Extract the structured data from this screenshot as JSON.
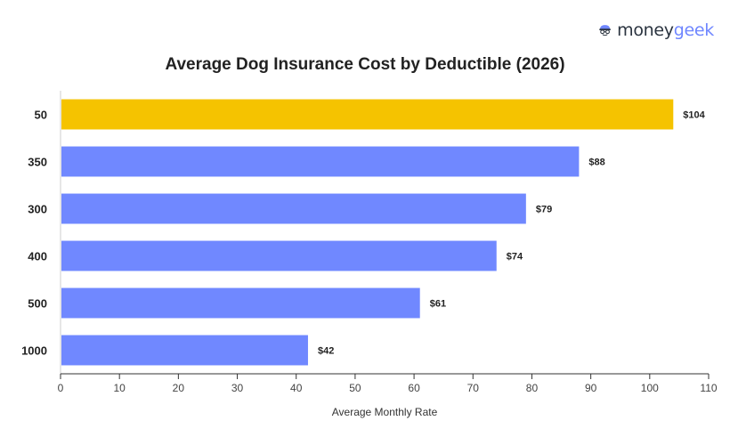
{
  "brand": {
    "name_part1": "money",
    "name_part2": "geek",
    "logo_icon": "moneygeek-face-icon",
    "colors": {
      "dark": "#2b3440",
      "accent": "#6f86ff"
    }
  },
  "chart_data": {
    "type": "bar",
    "orientation": "horizontal",
    "title": "Average Dog Insurance Cost by Deductible (2026)",
    "xlabel": "Average Monthly Rate",
    "ylabel": "",
    "categories": [
      "50",
      "350",
      "300",
      "400",
      "500",
      "1000"
    ],
    "values": [
      104,
      88,
      79,
      74,
      61,
      42
    ],
    "value_labels": [
      "$104",
      "$88",
      "$79",
      "$74",
      "$61",
      "$42"
    ],
    "bar_colors": [
      "#f5c300",
      "#7088ff",
      "#7088ff",
      "#7088ff",
      "#7088ff",
      "#7088ff"
    ],
    "xlim": [
      0,
      110
    ],
    "xticks": [
      0,
      10,
      20,
      30,
      40,
      50,
      60,
      70,
      80,
      90,
      100,
      110
    ],
    "grid": false,
    "legend": "none"
  }
}
